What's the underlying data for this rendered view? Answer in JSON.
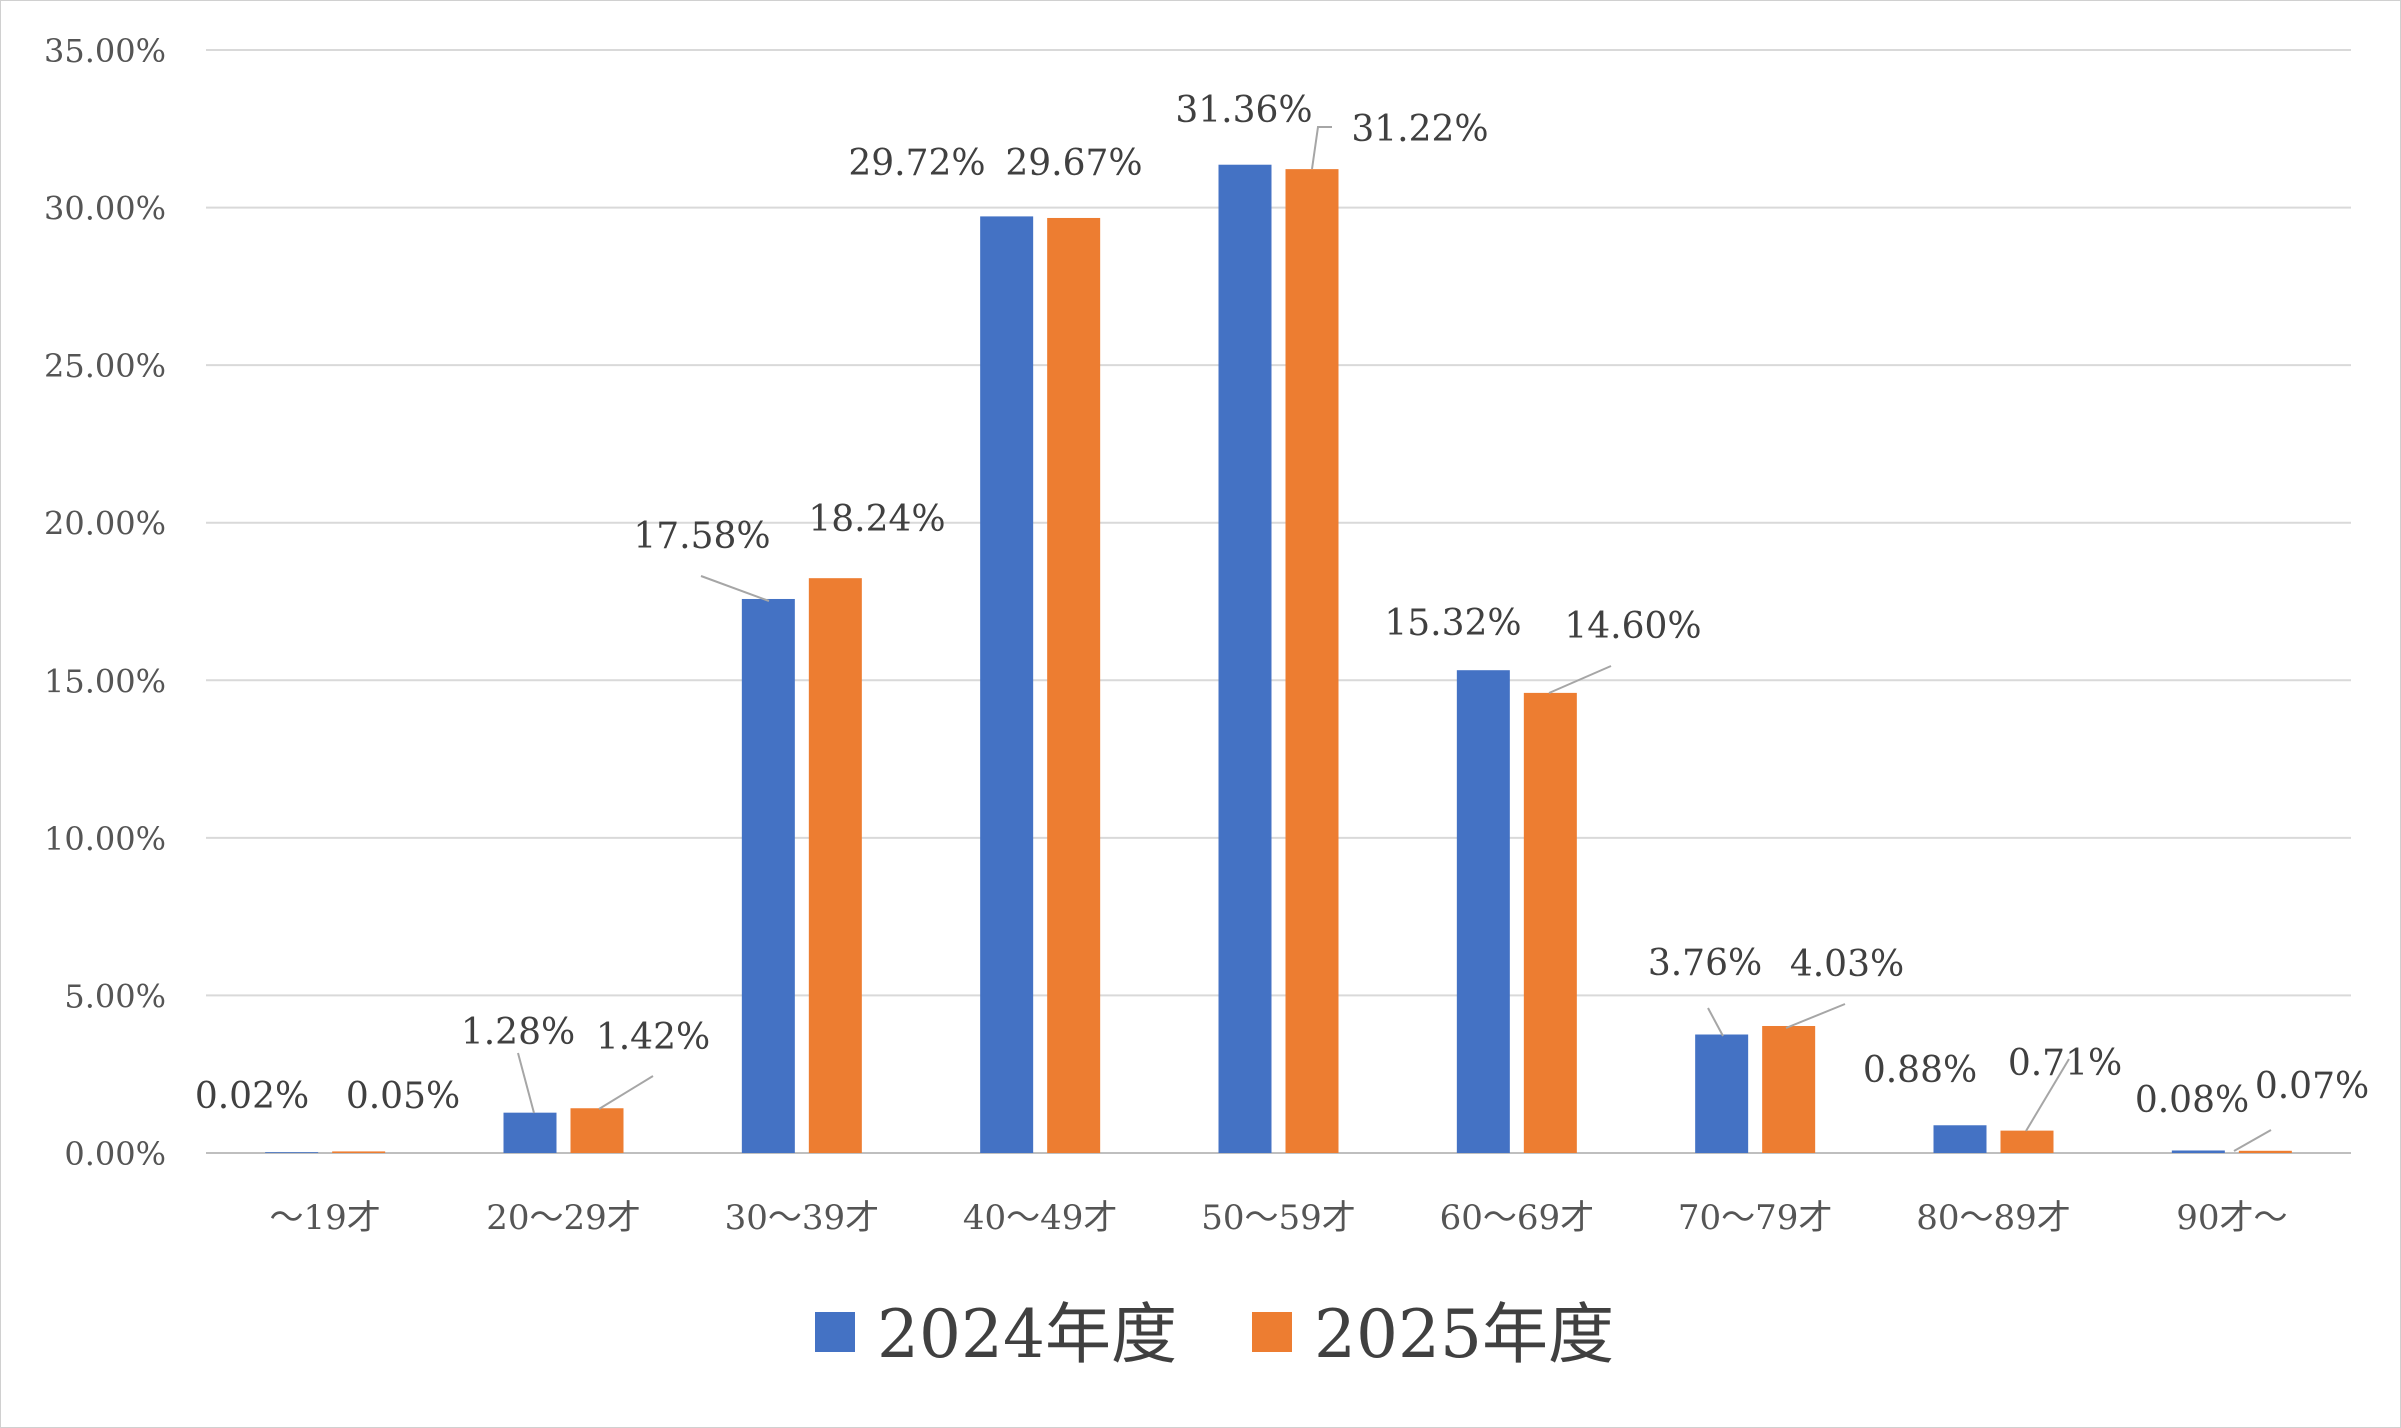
{
  "chart_data": {
    "type": "bar",
    "categories": [
      "～19才",
      "20～29才",
      "30～39才",
      "40～49才",
      "50～59才",
      "60～69才",
      "70～79才",
      "80～89才",
      "90才～"
    ],
    "series": [
      {
        "name": "2024年度",
        "color": "#4472C4",
        "values": [
          0.02,
          1.28,
          17.58,
          29.72,
          31.36,
          15.32,
          3.76,
          0.88,
          0.08
        ],
        "labels": [
          "0.02%",
          "1.28%",
          "17.58%",
          "29.72%",
          "31.36%",
          "15.32%",
          "3.76%",
          "0.88%",
          "0.08%"
        ]
      },
      {
        "name": "2025年度",
        "color": "#ED7D31",
        "values": [
          0.05,
          1.42,
          18.24,
          29.67,
          31.22,
          14.6,
          4.03,
          0.71,
          0.07
        ],
        "labels": [
          "0.05%",
          "1.42%",
          "18.24%",
          "29.67%",
          "31.22%",
          "14.60%",
          "4.03%",
          "0.71%",
          "0.07%"
        ]
      }
    ],
    "y_ticks": [
      "0.00%",
      "5.00%",
      "10.00%",
      "15.00%",
      "20.00%",
      "25.00%",
      "30.00%",
      "35.00%"
    ],
    "ylim": [
      0,
      35
    ],
    "grid": true,
    "legend_position": "bottom",
    "title": "",
    "xlabel": "",
    "ylabel": ""
  }
}
